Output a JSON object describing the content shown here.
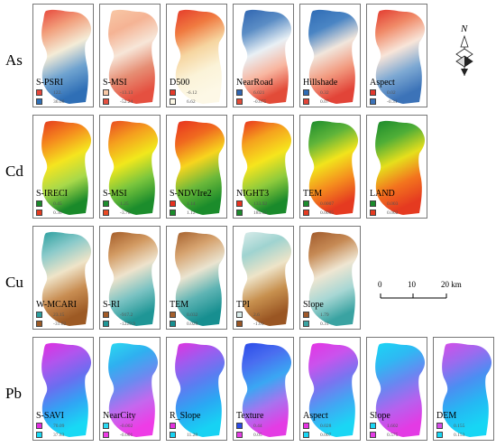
{
  "rows": [
    {
      "label": "As",
      "panels": [
        {
          "title": "S-PSRI",
          "high": "122.",
          "low": "36.06",
          "colors": [
            "#e7463a",
            "#f2a07d",
            "#f4ecd7",
            "#6fa3d0",
            "#2f6fb6"
          ],
          "angle": 90
        },
        {
          "title": "S-MSI",
          "high": "-13.13",
          "low": "-52.24",
          "colors": [
            "#f8c8a6",
            "#f5b394",
            "#f7e6d8",
            "#e68e74",
            "#e55040"
          ],
          "angle": 90
        },
        {
          "title": "D500",
          "high": "-6.12",
          "low": "6.62",
          "colors": [
            "#e53a2a",
            "#f07a40",
            "#f6d5a0",
            "#fbf3d8",
            "#fdf8e6"
          ],
          "angle": 90
        },
        {
          "title": "NearRoad",
          "high": "6.021",
          "low": "-0.075",
          "colors": [
            "#2f65b1",
            "#5b8dc5",
            "#e9f0f5",
            "#f8b6a0",
            "#e24b38"
          ],
          "angle": 90
        },
        {
          "title": "Hillshade",
          "high": "0.32",
          "low": "0.07",
          "colors": [
            "#2e6bb5",
            "#4a85c4",
            "#f1e6dc",
            "#f29b80",
            "#e24438"
          ],
          "angle": 90
        },
        {
          "title": "Aspect",
          "high": "0.02",
          "low": "-0.31",
          "colors": [
            "#e2382d",
            "#f08a68",
            "#f8e5d9",
            "#7ea9d3",
            "#3c73b8"
          ],
          "angle": 90
        }
      ]
    },
    {
      "label": "Cd",
      "panels": [
        {
          "title": "S-IRECI",
          "high": "0.45",
          "low": "0.30",
          "colors": [
            "#1a8a2a",
            "#a8d94a",
            "#f5e51f",
            "#f58a1e",
            "#e53a1e"
          ],
          "angle": 270
        },
        {
          "title": "S-MSI",
          "high": "1.25",
          "low": "-3.78",
          "colors": [
            "#1c8d2c",
            "#7bc63d",
            "#f1e81c",
            "#f5a01e",
            "#e94922"
          ],
          "angle": 270
        },
        {
          "title": "S-NDVIre2",
          "high": "1.14",
          "low": "1.12",
          "colors": [
            "#e8301f",
            "#f06a1f",
            "#f7d51e",
            "#6db93a",
            "#1b8c2b"
          ],
          "angle": 90
        },
        {
          "title": "NIGHT3",
          "high": "133.92",
          "low": "185.52",
          "colors": [
            "#e9321f",
            "#f5a21e",
            "#f6e51d",
            "#8fcb3c",
            "#1a8a2b"
          ],
          "angle": 90
        },
        {
          "title": "TEM",
          "high": "0.0007",
          "low": "0.0005",
          "colors": [
            "#1b8c2c",
            "#5fb43a",
            "#f2e41c",
            "#f58d1e",
            "#e53a20"
          ],
          "angle": 90
        },
        {
          "title": "LAND",
          "high": "0.003",
          "low": "0.002",
          "colors": [
            "#1a8a2b",
            "#4fae37",
            "#e6df1c",
            "#f3741e",
            "#e53a20"
          ],
          "angle": 90
        }
      ]
    },
    {
      "label": "Cu",
      "panels": [
        {
          "title": "W-MCARI",
          "high": "23.15",
          "low": "-31.62",
          "colors": [
            "#2b9f9f",
            "#8acaca",
            "#efe4c8",
            "#c88d52",
            "#9d5a24"
          ],
          "angle": 90
        },
        {
          "title": "S-RI",
          "high": "-917.2",
          "low": "-1229.9",
          "colors": [
            "#a35b27",
            "#d29a62",
            "#eee3cc",
            "#7cc3c3",
            "#1f9696"
          ],
          "angle": 90
        },
        {
          "title": "TEM",
          "high": "0.032",
          "low": "0.029",
          "colors": [
            "#a5602c",
            "#d6a36f",
            "#eae4d0",
            "#5fb4b4",
            "#178f90"
          ],
          "angle": 90
        },
        {
          "title": "TPI",
          "high": "2.6",
          "low": "-1.01",
          "colors": [
            "#d9ecea",
            "#9fd3d0",
            "#eee4c8",
            "#c7904e",
            "#9a5623"
          ],
          "angle": 90
        },
        {
          "title": "Slope",
          "high": "1.79",
          "low": "0.31",
          "colors": [
            "#a0592a",
            "#c68a55",
            "#efe6d2",
            "#a8d7d4",
            "#3aa3a2"
          ],
          "angle": 90
        }
      ]
    },
    {
      "label": "Pb",
      "panels": [
        {
          "title": "S-SAVI",
          "high": "70.09",
          "low": "37.83",
          "colors": [
            "#e12de0",
            "#b055ee",
            "#6a6ef0",
            "#30a5f4",
            "#18d9f4"
          ],
          "angle": 90
        },
        {
          "title": "NearCity",
          "high": "-0.002",
          "low": "-0.001",
          "colors": [
            "#2ad9f1",
            "#2fb0f0",
            "#6c8af0",
            "#c468ee",
            "#ee3ce6"
          ],
          "angle": 90
        },
        {
          "title": "R_Slope",
          "high": "",
          "low": "11.28",
          "colors": [
            "#e232df",
            "#9d5cef",
            "#5b7df1",
            "#2aa8f3",
            "#17d2f3"
          ],
          "angle": 90
        },
        {
          "title": "Texture",
          "high": "0.44",
          "low": "0.05",
          "colors": [
            "#2a4ae8",
            "#4a6ef0",
            "#3aa7f3",
            "#a873ef",
            "#e43ce4"
          ],
          "angle": 90
        },
        {
          "title": "Aspect",
          "high": "0.028",
          "low": "0.007",
          "colors": [
            "#e632e3",
            "#c953ed",
            "#7a74f0",
            "#3fa9f3",
            "#1ad6f4"
          ],
          "angle": 90
        },
        {
          "title": "Slope",
          "high": "1.602",
          "low": "0.575",
          "colors": [
            "#1ad6f4",
            "#2fb8f3",
            "#6a86f1",
            "#b661ee",
            "#e33be4"
          ],
          "angle": 90
        },
        {
          "title": "DEM",
          "high": "0.155",
          "low": "0.153",
          "colors": [
            "#d64ce8",
            "#9a6bef",
            "#4b8ef2",
            "#25b8f3",
            "#17d6f4"
          ],
          "angle": 90
        }
      ]
    }
  ],
  "compass": {
    "label": "N",
    "icon": "north-arrow-icon"
  },
  "scale_bar": {
    "ticks": [
      "0",
      "10",
      "20 km"
    ]
  }
}
